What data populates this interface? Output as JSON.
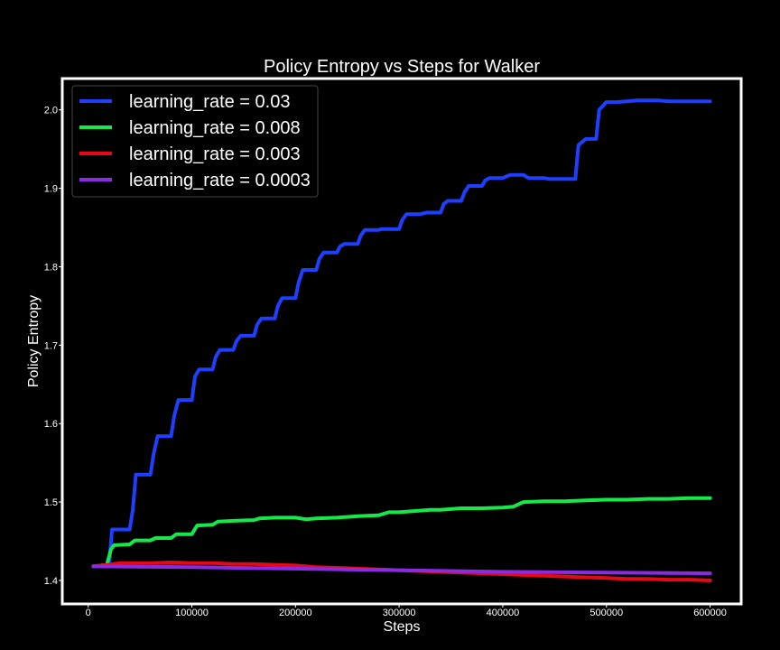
{
  "chart_data": {
    "type": "line",
    "title": "Policy Entropy vs Steps for Walker",
    "xlabel": "Steps",
    "ylabel": "Policy Entropy",
    "xlim": [
      -25000,
      630000
    ],
    "ylim": [
      1.37,
      2.04
    ],
    "xticks": [
      0,
      100000,
      200000,
      300000,
      400000,
      500000,
      600000
    ],
    "yticks": [
      1.4,
      1.5,
      1.6,
      1.7,
      1.8,
      1.9,
      2.0
    ],
    "xtick_labels": [
      "0",
      "100000",
      "200000",
      "300000",
      "400000",
      "500000",
      "600000"
    ],
    "ytick_labels": [
      "1.4",
      "1.5",
      "1.6",
      "1.7",
      "1.8",
      "1.9",
      "2.0"
    ],
    "grid": false,
    "legend_position": "top-left",
    "background_color": "#000000",
    "series": [
      {
        "name": "learning_rate = 0.03",
        "color": "#1f3fff",
        "x": [
          5000,
          20000,
          23000,
          40000,
          43000,
          46000,
          60000,
          63000,
          67000,
          80000,
          83000,
          87000,
          100000,
          103000,
          107000,
          120000,
          123000,
          127000,
          140000,
          143000,
          147000,
          160000,
          163000,
          167000,
          180000,
          183000,
          187000,
          200000,
          203000,
          207000,
          220000,
          223000,
          227000,
          240000,
          243000,
          247000,
          260000,
          263000,
          267000,
          280000,
          283000,
          287000,
          300000,
          303000,
          307000,
          320000,
          323000,
          327000,
          340000,
          343000,
          347000,
          360000,
          363000,
          367000,
          380000,
          383000,
          387000,
          400000,
          403000,
          407000,
          420000,
          425000,
          440000,
          445000,
          460000,
          470000,
          473000,
          480000,
          483000,
          490000,
          493000,
          500000,
          510000,
          530000,
          550000,
          560000,
          580000,
          600000
        ],
        "y": [
          1.418,
          1.418,
          1.465,
          1.465,
          1.49,
          1.535,
          1.535,
          1.56,
          1.584,
          1.584,
          1.61,
          1.63,
          1.63,
          1.66,
          1.669,
          1.669,
          1.685,
          1.694,
          1.694,
          1.705,
          1.712,
          1.712,
          1.726,
          1.734,
          1.734,
          1.75,
          1.76,
          1.76,
          1.78,
          1.796,
          1.796,
          1.81,
          1.818,
          1.818,
          1.826,
          1.829,
          1.829,
          1.84,
          1.847,
          1.847,
          1.848,
          1.848,
          1.848,
          1.86,
          1.867,
          1.867,
          1.868,
          1.869,
          1.869,
          1.88,
          1.884,
          1.884,
          1.895,
          1.903,
          1.903,
          1.91,
          1.913,
          1.913,
          1.915,
          1.917,
          1.917,
          1.913,
          1.913,
          1.912,
          1.912,
          1.912,
          1.955,
          1.963,
          1.963,
          1.963,
          2.0,
          2.01,
          2.01,
          2.012,
          2.012,
          2.011,
          2.011,
          2.011
        ]
      },
      {
        "name": "learning_rate = 0.008",
        "color": "#17e84a",
        "x": [
          5000,
          18000,
          22000,
          25000,
          40000,
          45000,
          60000,
          65000,
          80000,
          85000,
          100000,
          105000,
          120000,
          125000,
          140000,
          160000,
          165000,
          180000,
          200000,
          210000,
          220000,
          240000,
          250000,
          260000,
          280000,
          290000,
          300000,
          320000,
          330000,
          340000,
          360000,
          380000,
          400000,
          410000,
          420000,
          440000,
          460000,
          480000,
          500000,
          520000,
          540000,
          560000,
          580000,
          600000
        ],
        "y": [
          1.418,
          1.42,
          1.44,
          1.445,
          1.446,
          1.451,
          1.451,
          1.454,
          1.454,
          1.459,
          1.459,
          1.47,
          1.471,
          1.475,
          1.476,
          1.477,
          1.479,
          1.48,
          1.48,
          1.478,
          1.479,
          1.48,
          1.481,
          1.482,
          1.483,
          1.487,
          1.487,
          1.489,
          1.49,
          1.49,
          1.492,
          1.492,
          1.493,
          1.494,
          1.5,
          1.501,
          1.501,
          1.502,
          1.503,
          1.503,
          1.504,
          1.504,
          1.505,
          1.505
        ]
      },
      {
        "name": "learning_rate = 0.003",
        "color": "#e50915",
        "x": [
          5000,
          20000,
          30000,
          60000,
          80000,
          100000,
          120000,
          140000,
          160000,
          180000,
          200000,
          220000,
          240000,
          260000,
          280000,
          300000,
          320000,
          340000,
          360000,
          380000,
          400000,
          420000,
          440000,
          460000,
          480000,
          500000,
          520000,
          540000,
          560000,
          580000,
          600000
        ],
        "y": [
          1.418,
          1.42,
          1.422,
          1.422,
          1.423,
          1.422,
          1.422,
          1.421,
          1.421,
          1.42,
          1.419,
          1.417,
          1.416,
          1.415,
          1.414,
          1.413,
          1.412,
          1.411,
          1.41,
          1.409,
          1.408,
          1.407,
          1.406,
          1.405,
          1.404,
          1.403,
          1.402,
          1.402,
          1.401,
          1.401,
          1.4
        ]
      },
      {
        "name": "learning_rate = 0.0003",
        "color": "#8a2be2",
        "x": [
          5000,
          100000,
          200000,
          300000,
          400000,
          500000,
          600000
        ],
        "y": [
          1.418,
          1.417,
          1.415,
          1.413,
          1.411,
          1.41,
          1.409
        ]
      }
    ]
  }
}
